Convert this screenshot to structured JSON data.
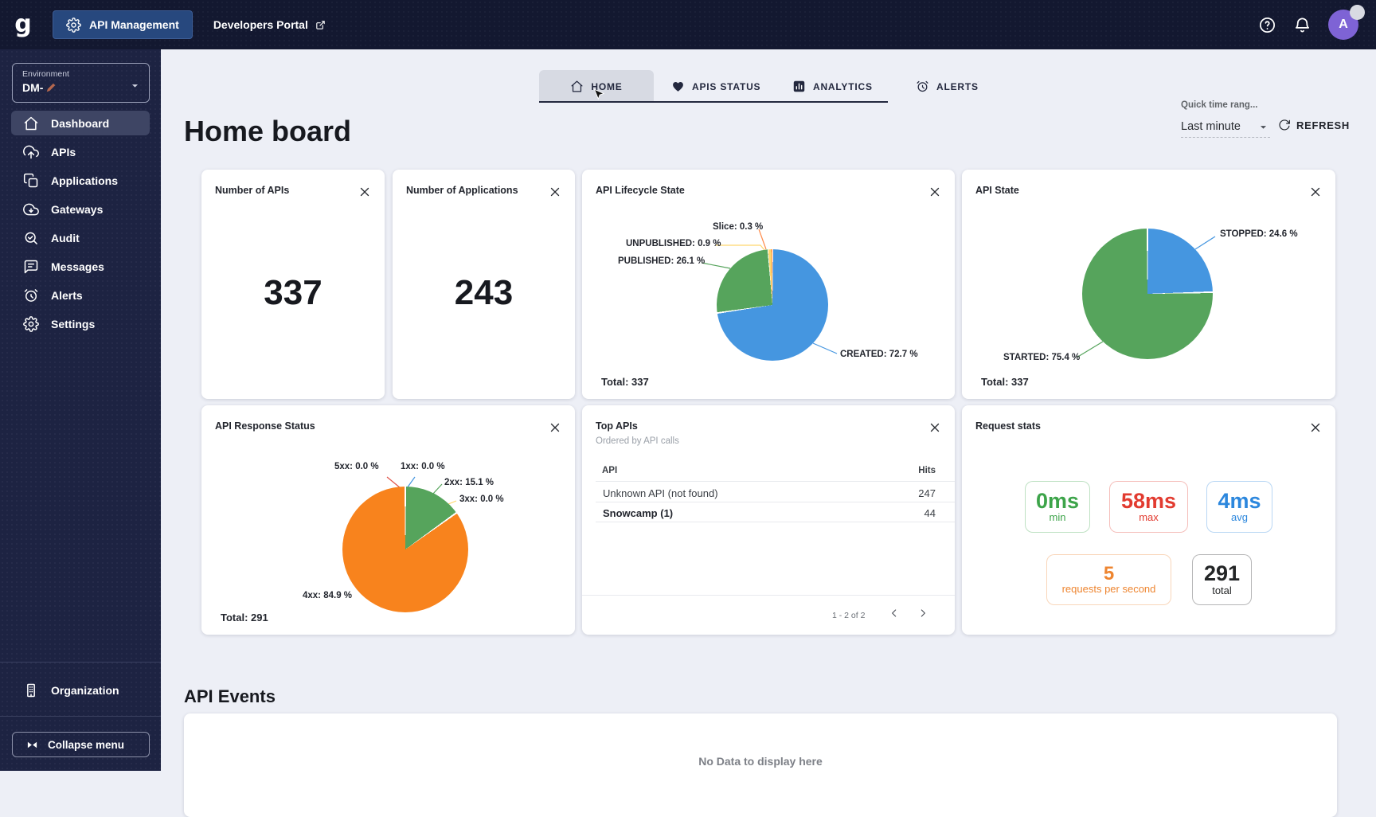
{
  "topbar": {
    "product_button": "API Management",
    "portal_link": "Developers Portal",
    "avatar_initial": "A"
  },
  "sidebar": {
    "environment": {
      "label": "Environment",
      "value": "DM-"
    },
    "items": [
      {
        "label": "Dashboard",
        "icon": "home",
        "active": true
      },
      {
        "label": "APIs",
        "icon": "cloud-upload",
        "active": false
      },
      {
        "label": "Applications",
        "icon": "applications",
        "active": false
      },
      {
        "label": "Gateways",
        "icon": "cloud",
        "active": false
      },
      {
        "label": "Audit",
        "icon": "audit",
        "active": false
      },
      {
        "label": "Messages",
        "icon": "messages",
        "active": false
      },
      {
        "label": "Alerts",
        "icon": "alarm",
        "active": false
      },
      {
        "label": "Settings",
        "icon": "gear",
        "active": false
      }
    ],
    "organization_label": "Organization",
    "collapse_label": "Collapse menu"
  },
  "tabs": [
    {
      "label": "HOME",
      "icon": "home",
      "active": true
    },
    {
      "label": "APIS STATUS",
      "icon": "heart",
      "active": false
    },
    {
      "label": "ANALYTICS",
      "icon": "bar-chart",
      "active": false
    },
    {
      "label": "ALERTS",
      "icon": "alarm",
      "active": false
    }
  ],
  "header": {
    "title": "Home board",
    "quick_time_label": "Quick time rang...",
    "time_range_value": "Last minute",
    "refresh_label": "REFRESH"
  },
  "cards": {
    "apis_count": {
      "title": "Number of APIs",
      "value": "337"
    },
    "apps_count": {
      "title": "Number of Applications",
      "value": "243"
    },
    "top_apis": {
      "title": "Top APIs",
      "subtitle": "Ordered by API calls",
      "columns": {
        "api": "API",
        "hits": "Hits"
      },
      "rows": [
        {
          "api": "Unknown API (not found)",
          "hits": "247"
        },
        {
          "api": "Snowcamp (1)",
          "hits": "44"
        }
      ],
      "pagination": "1 - 2 of 2"
    },
    "request_stats": {
      "title": "Request stats",
      "stats": [
        {
          "value": "0ms",
          "label": "min",
          "color": "#3da44a"
        },
        {
          "value": "58ms",
          "label": "max",
          "color": "#e23b30"
        },
        {
          "value": "4ms",
          "label": "avg",
          "color": "#2c87dd"
        },
        {
          "value": "5",
          "label": "requests per second",
          "color": "#ee8530"
        },
        {
          "value": "291",
          "label": "total",
          "color": "#232526"
        }
      ]
    }
  },
  "events": {
    "title": "API Events",
    "empty_text": "No Data to display here"
  },
  "chart_data": [
    {
      "id": "lifecycle",
      "type": "pie",
      "title": "API Lifecycle State",
      "total": 337,
      "total_label": "Total: 337",
      "legend_position": "callouts",
      "slices": [
        {
          "name": "CREATED",
          "pct": 72.7,
          "color": "#4596e0",
          "callout": "CREATED: 72.7 %"
        },
        {
          "name": "PUBLISHED",
          "pct": 26.1,
          "color": "#56a45c",
          "callout": "PUBLISHED: 26.1 %"
        },
        {
          "name": "UNPUBLISHED",
          "pct": 0.9,
          "color": "#ffd76e",
          "callout": "UNPUBLISHED: 0.9 %"
        },
        {
          "name": "Slice",
          "pct": 0.3,
          "color": "#ff8b4a",
          "callout": "Slice: 0.3 %"
        }
      ]
    },
    {
      "id": "state",
      "type": "pie",
      "title": "API State",
      "total": 337,
      "total_label": "Total: 337",
      "legend_position": "callouts",
      "slices": [
        {
          "name": "STOPPED",
          "pct": 24.6,
          "color": "#4596e0",
          "callout": "STOPPED: 24.6 %"
        },
        {
          "name": "STARTED",
          "pct": 75.4,
          "color": "#56a45c",
          "callout": "STARTED: 75.4 %"
        }
      ]
    },
    {
      "id": "response",
      "type": "pie",
      "title": "API Response Status",
      "total": 291,
      "total_label": "Total: 291",
      "legend_position": "callouts",
      "slices": [
        {
          "name": "1xx",
          "pct": 0.0,
          "color": "#4596e0",
          "callout": "1xx: 0.0 %"
        },
        {
          "name": "2xx",
          "pct": 15.1,
          "color": "#56a45c",
          "callout": "2xx: 15.1 %"
        },
        {
          "name": "3xx",
          "pct": 0.0,
          "color": "#ffd76e",
          "callout": "3xx: 0.0 %"
        },
        {
          "name": "4xx",
          "pct": 84.9,
          "color": "#f8831d",
          "callout": "4xx: 84.9 %"
        },
        {
          "name": "5xx",
          "pct": 0.0,
          "color": "#e0544a",
          "callout": "5xx: 0.0 %"
        }
      ]
    }
  ]
}
